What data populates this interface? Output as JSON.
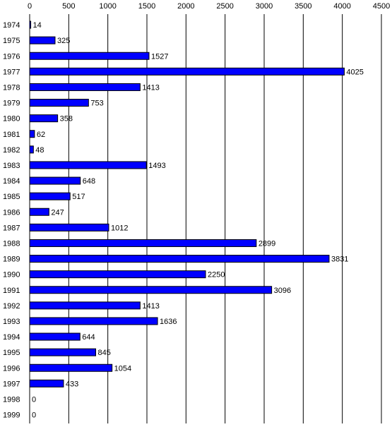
{
  "chart_data": {
    "type": "bar",
    "orientation": "horizontal",
    "title": "",
    "xlabel": "",
    "ylabel": "",
    "xlim": [
      0,
      4500
    ],
    "x_ticks": [
      0,
      500,
      1000,
      1500,
      2000,
      2500,
      3000,
      3500,
      4000,
      4500
    ],
    "x_axis_position": "top",
    "grid": "vertical",
    "legend": "none",
    "bar_color": "#0000ff",
    "bar_border_color": "#000000",
    "categories": [
      "1974",
      "1975",
      "1976",
      "1977",
      "1978",
      "1979",
      "1980",
      "1981",
      "1982",
      "1983",
      "1984",
      "1985",
      "1986",
      "1987",
      "1988",
      "1989",
      "1990",
      "1991",
      "1992",
      "1993",
      "1994",
      "1995",
      "1996",
      "1997",
      "1998",
      "1999"
    ],
    "values": [
      14,
      325,
      1527,
      4025,
      1413,
      753,
      358,
      62,
      48,
      1493,
      648,
      517,
      247,
      1012,
      2899,
      3831,
      2250,
      3096,
      1413,
      1636,
      644,
      845,
      1054,
      433,
      0,
      0
    ]
  }
}
